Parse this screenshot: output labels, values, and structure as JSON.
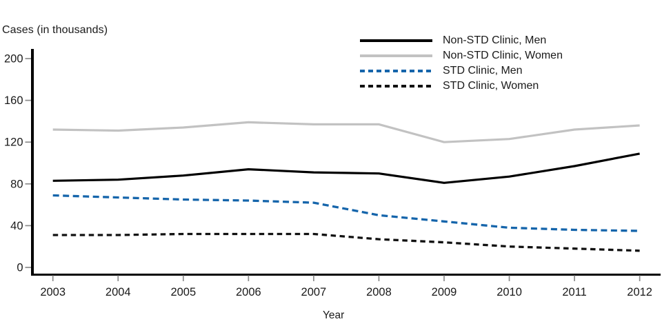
{
  "chart_data": {
    "type": "line",
    "title": "Cases (in thousands)",
    "ylabel": "Cases (in thousands)",
    "xlabel": "Year",
    "x": [
      2003,
      2004,
      2005,
      2006,
      2007,
      2008,
      2009,
      2010,
      2011,
      2012
    ],
    "yticks": [
      0,
      40,
      80,
      120,
      160,
      200
    ],
    "ylim": [
      0,
      210
    ],
    "grid": false,
    "legend_position": "top-right",
    "axis_color": "#000000",
    "tick_color": "#8a8a8a",
    "series": [
      {
        "name": "Non-STD Clinic, Men",
        "color": "#000000",
        "style": "solid",
        "values": [
          83,
          84,
          88,
          94,
          91,
          90,
          81,
          87,
          97,
          109
        ]
      },
      {
        "name": "Non-STD Clinic, Women",
        "color": "#c2c2c2",
        "style": "solid",
        "values": [
          132,
          131,
          134,
          139,
          137,
          137,
          120,
          123,
          132,
          136
        ]
      },
      {
        "name": "STD Clinic, Men",
        "color": "#1565ab",
        "style": "dashed",
        "values": [
          69,
          67,
          65,
          64,
          62,
          50,
          44,
          38,
          36,
          35
        ]
      },
      {
        "name": "STD Clinic, Women",
        "color": "#111111",
        "style": "dashed",
        "values": [
          31,
          31,
          32,
          32,
          32,
          27,
          24,
          20,
          18,
          16
        ]
      }
    ]
  }
}
